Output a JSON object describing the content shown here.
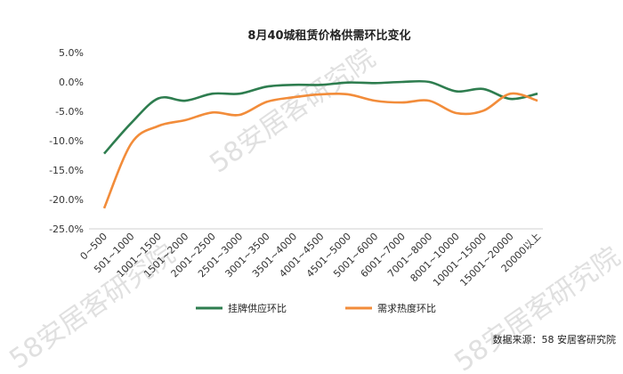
{
  "watermark": "58安居客研究院",
  "source_text": "数据来源：58 安居客研究院",
  "chart_data": {
    "type": "line",
    "title": "8月40城租赁价格供需环比变化",
    "xlabel": "",
    "ylabel": "",
    "ylim": [
      -25,
      5
    ],
    "yticks": [
      "5.0%",
      "0.0%",
      "-5.0%",
      "-10.0%",
      "-15.0%",
      "-20.0%",
      "-25.0%"
    ],
    "categories": [
      "0~500",
      "501~1000",
      "1001~1500",
      "1501~2000",
      "2001~2500",
      "2501~3000",
      "3001~3500",
      "3501~4000",
      "4001~4500",
      "4501~5000",
      "5001~6000",
      "6001~7000",
      "7001~8000",
      "8001~10000",
      "10001~15000",
      "15001~20000",
      "20000以上"
    ],
    "grid": false,
    "legend": "bottom",
    "series": [
      {
        "name": "挂牌供应环比",
        "color": "#2e7d4f",
        "values": [
          -12.2,
          -7.0,
          -2.8,
          -3.2,
          -2.0,
          -2.0,
          -0.8,
          -0.5,
          -0.5,
          -0.1,
          -0.2,
          0.0,
          0.0,
          -1.6,
          -1.2,
          -2.9,
          -2.0
        ]
      },
      {
        "name": "需求热度环比",
        "color": "#f28c3a",
        "values": [
          -21.5,
          -10.5,
          -7.5,
          -6.5,
          -5.2,
          -5.6,
          -3.4,
          -2.6,
          -2.1,
          -2.1,
          -3.2,
          -3.5,
          -3.2,
          -5.3,
          -4.9,
          -2.0,
          -3.2
        ]
      }
    ]
  }
}
